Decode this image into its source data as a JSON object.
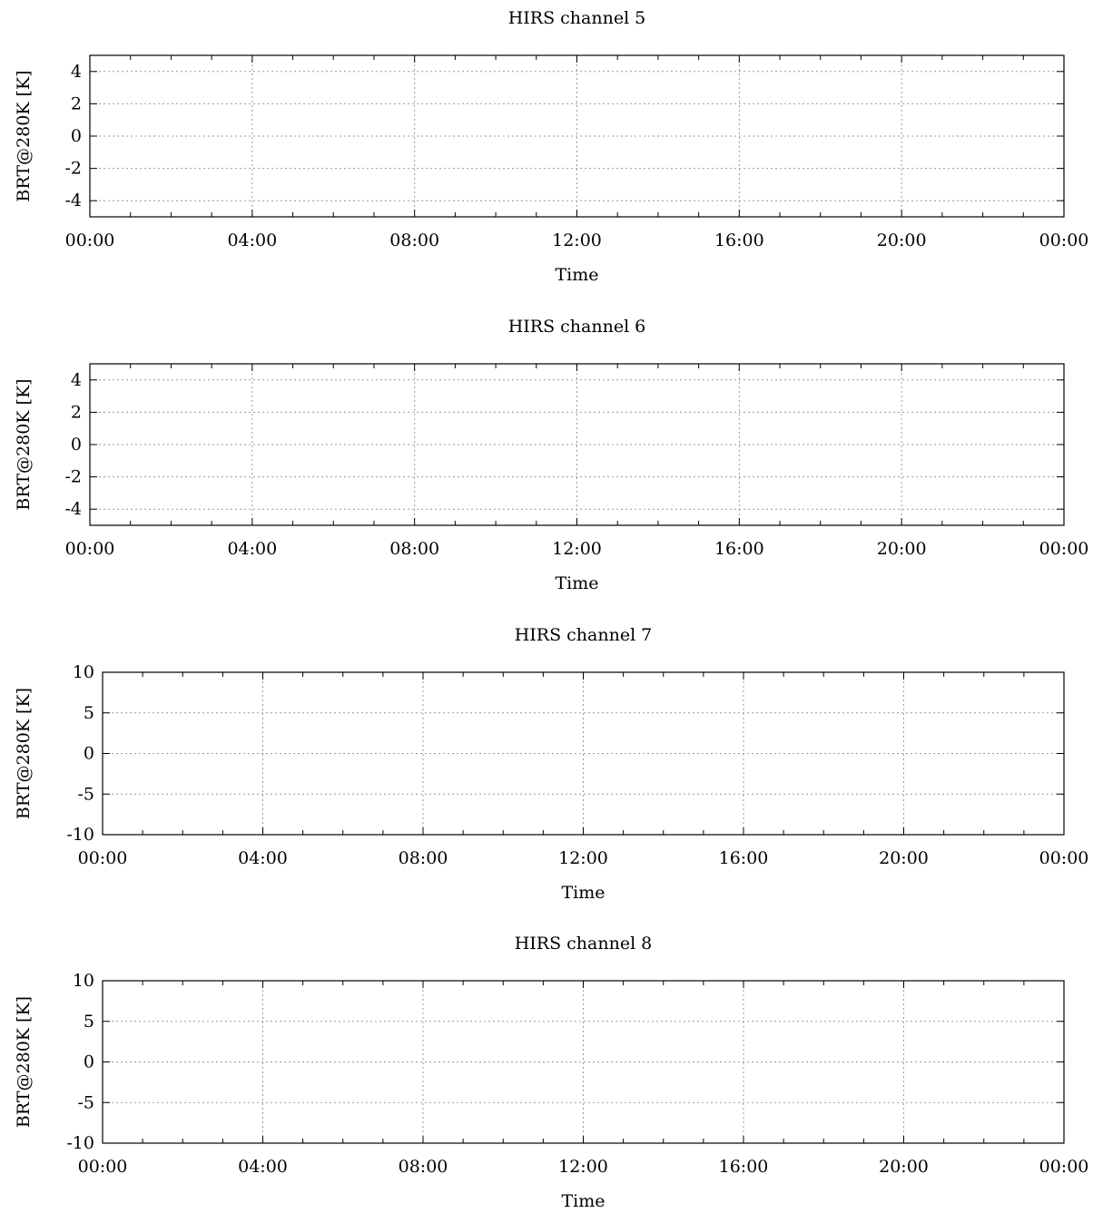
{
  "chart_data": [
    {
      "type": "line",
      "title": "HIRS channel 5",
      "xlabel": "Time",
      "ylabel": "BRT@280K [K]",
      "xticks": [
        "00:00",
        "04:00",
        "08:00",
        "12:00",
        "16:00",
        "20:00",
        "00:00"
      ],
      "yticks": [
        -4,
        -2,
        0,
        2,
        4
      ],
      "ylim": [
        -5,
        5
      ],
      "grid": true,
      "series": []
    },
    {
      "type": "line",
      "title": "HIRS channel 6",
      "xlabel": "Time",
      "ylabel": "BRT@280K [K]",
      "xticks": [
        "00:00",
        "04:00",
        "08:00",
        "12:00",
        "16:00",
        "20:00",
        "00:00"
      ],
      "yticks": [
        -4,
        -2,
        0,
        2,
        4
      ],
      "ylim": [
        -5,
        5
      ],
      "grid": true,
      "series": []
    },
    {
      "type": "line",
      "title": "HIRS channel 7",
      "xlabel": "Time",
      "ylabel": "BRT@280K [K]",
      "xticks": [
        "00:00",
        "04:00",
        "08:00",
        "12:00",
        "16:00",
        "20:00",
        "00:00"
      ],
      "yticks": [
        -10,
        -5,
        0,
        5,
        10
      ],
      "ylim": [
        -10,
        10
      ],
      "grid": true,
      "series": []
    },
    {
      "type": "line",
      "title": "HIRS channel 8",
      "xlabel": "Time",
      "ylabel": "BRT@280K [K]",
      "xticks": [
        "00:00",
        "04:00",
        "08:00",
        "12:00",
        "16:00",
        "20:00",
        "00:00"
      ],
      "yticks": [
        -10,
        -5,
        0,
        5,
        10
      ],
      "ylim": [
        -10,
        10
      ],
      "grid": true,
      "series": []
    }
  ]
}
